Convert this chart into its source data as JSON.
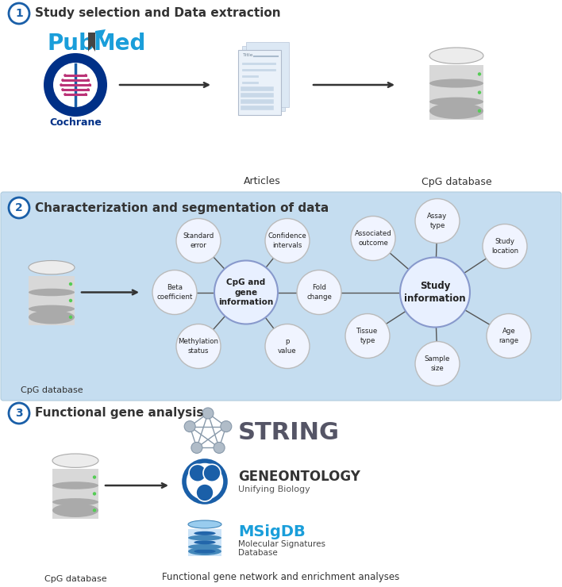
{
  "title1": "Study selection and Data extraction",
  "title2": "Characterization and segmentation of data",
  "title3": "Functional gene analysis",
  "section2_bg": "#c5ddf0",
  "cpg_hub_label": "CpG and\ngene\ninformation",
  "study_hub_label": "Study\ninformation",
  "pubmed_color": "#1a9eda",
  "cochrane_dark": "#003087",
  "cochrane_pink": "#bb3377",
  "node_bg": "#f0f4ff",
  "node_edge": "#bbbbbb",
  "hub_bg": "#e8f0ff",
  "hub_edge": "#8899cc"
}
